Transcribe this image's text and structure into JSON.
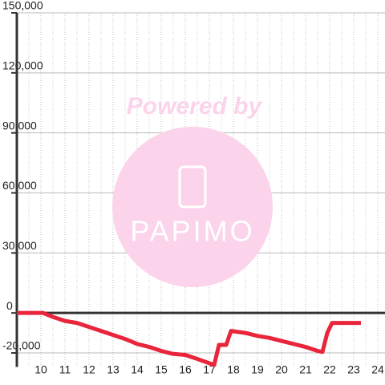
{
  "chart_data": {
    "type": "line",
    "watermark_top": "Powered by",
    "watermark_logo": "PAPIMO",
    "x": [
      9.0,
      10.1,
      10.5,
      11.0,
      11.5,
      12.0,
      12.5,
      13.0,
      13.5,
      14.0,
      14.5,
      15.0,
      15.5,
      16.0,
      16.5,
      17.2,
      17.4,
      17.7,
      17.9,
      18.5,
      19.0,
      19.5,
      20.0,
      20.5,
      21.0,
      21.5,
      21.7,
      21.9,
      22.1,
      23.3
    ],
    "series": [
      {
        "color": "#e8253b",
        "values": [
          0,
          0,
          -2000,
          -4000,
          -5000,
          -7000,
          -9000,
          -11000,
          -13000,
          -15500,
          -17000,
          -19000,
          -20500,
          -21000,
          -23000,
          -26000,
          -16000,
          -16000,
          -9000,
          -10000,
          -11500,
          -12500,
          -14000,
          -15500,
          -17000,
          -19000,
          -19500,
          -10000,
          -5000,
          -5000
        ]
      }
    ],
    "xlim": [
      9,
      24.3
    ],
    "xticks": [
      10,
      11,
      12,
      13,
      14,
      15,
      16,
      17,
      18,
      19,
      20,
      21,
      22,
      23,
      24
    ],
    "ylim": [
      -27000,
      150000
    ],
    "yticks": [
      {
        "value": -20000,
        "label": "-20,000"
      },
      0,
      {
        "value": 30000,
        "label": "30,000"
      },
      {
        "value": 60000,
        "label": "60,000"
      },
      {
        "value": 90000,
        "label": "90,000"
      },
      {
        "value": 120000,
        "label": "120,000"
      },
      {
        "value": 150000,
        "label": "150,000"
      }
    ],
    "grid": true
  }
}
